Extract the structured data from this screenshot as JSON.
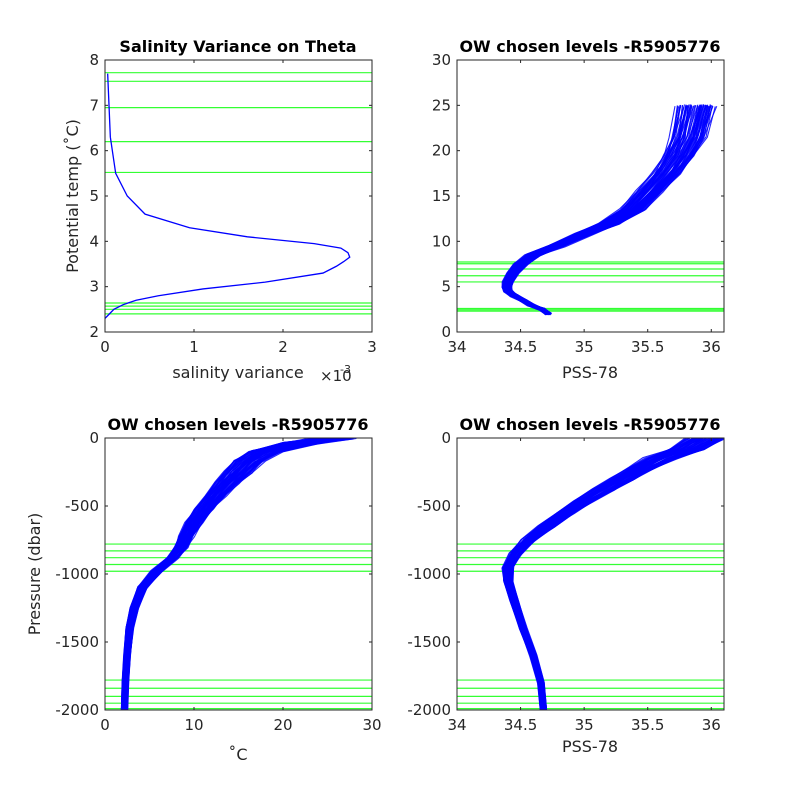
{
  "chart_data": [
    {
      "type": "line",
      "title": "Salinity Variance on Theta",
      "xlabel": "salinity variance",
      "x_exponent_label": "×10",
      "x_exponent": "-3",
      "ylabel": "Potential temp (˚C)",
      "xlim": [
        0,
        3
      ],
      "ylim": [
        2,
        8
      ],
      "xticks": [
        "0",
        "1",
        "2",
        "3"
      ],
      "yticks": [
        "2",
        "3",
        "4",
        "5",
        "6",
        "7",
        "8"
      ],
      "x_scale": 0.001,
      "series": [
        {
          "color": "#0000ff",
          "x": [
            0.0,
            0.05,
            0.1,
            0.2,
            0.35,
            0.6,
            1.1,
            1.8,
            2.45,
            2.6,
            2.68,
            2.75,
            2.73,
            2.65,
            2.35,
            1.6,
            0.95,
            0.45,
            0.25,
            0.12,
            0.06,
            0.03
          ],
          "y": [
            2.3,
            2.4,
            2.5,
            2.6,
            2.7,
            2.8,
            2.95,
            3.1,
            3.3,
            3.45,
            3.55,
            3.65,
            3.75,
            3.85,
            3.95,
            4.1,
            4.3,
            4.6,
            5.0,
            5.5,
            6.3,
            7.7
          ]
        }
      ],
      "levels": [
        2.4,
        2.5,
        2.57,
        2.64,
        5.52,
        6.2,
        6.95,
        7.53,
        7.72
      ],
      "level_color": "#33ff33"
    },
    {
      "type": "line",
      "title": "OW chosen levels -R5905776",
      "xlabel": "PSS-78",
      "ylabel": "",
      "xlim": [
        34,
        36.1
      ],
      "ylim": [
        0,
        30
      ],
      "xticks": [
        "34",
        "34.5",
        "35",
        "35.5",
        "36"
      ],
      "yticks": [
        "0",
        "5",
        "10",
        "15",
        "20",
        "25",
        "30"
      ],
      "series_color": "#0000ff",
      "mean_profile": {
        "x": [
          34.72,
          34.67,
          34.58,
          34.52,
          34.45,
          34.4,
          34.39,
          34.4,
          34.44,
          34.5,
          34.6,
          34.78,
          35.0,
          35.2,
          35.38,
          35.52,
          35.65,
          35.75,
          35.82,
          35.88
        ],
        "y": [
          2.0,
          2.5,
          3.0,
          3.5,
          4.0,
          4.5,
          5.0,
          5.5,
          6.5,
          7.5,
          8.5,
          9.5,
          10.8,
          12.0,
          13.5,
          15.5,
          17.5,
          19.5,
          21.5,
          25.0
        ]
      },
      "levels": [
        2.3,
        2.45,
        2.6,
        5.52,
        6.2,
        6.95,
        7.53,
        7.72
      ],
      "level_color": "#33ff33"
    },
    {
      "type": "line",
      "title": "OW chosen levels -R5905776",
      "xlabel": "˚C",
      "ylabel": "Pressure (dbar)",
      "xlim": [
        0,
        30
      ],
      "ylim": [
        -2000,
        0
      ],
      "xticks": [
        "0",
        "10",
        "20",
        "30"
      ],
      "yticks": [
        "-2000",
        "-1500",
        "-1000",
        "-500",
        "0"
      ],
      "series_color": "#0000ff",
      "mean_profile": {
        "x": [
          2.2,
          2.3,
          2.5,
          2.8,
          3.3,
          4.2,
          5.8,
          7.6,
          8.6,
          9.2,
          10.0,
          11.2,
          12.5,
          13.8,
          15.0,
          16.2,
          18.0,
          22.0,
          26.0
        ],
        "y": [
          -2000,
          -1800,
          -1600,
          -1400,
          -1250,
          -1100,
          -980,
          -880,
          -800,
          -720,
          -620,
          -520,
          -420,
          -330,
          -250,
          -170,
          -100,
          -40,
          0
        ]
      },
      "levels": [
        -780,
        -830,
        -880,
        -930,
        -980,
        -1780,
        -1840,
        -1900,
        -1950,
        -1990
      ],
      "level_color": "#33ff33"
    },
    {
      "type": "line",
      "title": "OW chosen levels -R5905776",
      "xlabel": "PSS-78",
      "ylabel": "",
      "xlim": [
        34,
        36.1
      ],
      "ylim": [
        -2000,
        0
      ],
      "xticks": [
        "34",
        "34.5",
        "35",
        "35.5",
        "36"
      ],
      "yticks": [
        "-2000",
        "-1500",
        "-1000",
        "-500",
        "0"
      ],
      "series_color": "#0000ff",
      "mean_profile": {
        "x": [
          34.68,
          34.66,
          34.6,
          34.52,
          34.45,
          34.4,
          34.4,
          34.46,
          34.56,
          34.7,
          34.85,
          35.0,
          35.15,
          35.3,
          35.45,
          35.6,
          35.8,
          35.95
        ],
        "y": [
          -2000,
          -1800,
          -1600,
          -1400,
          -1200,
          -1050,
          -950,
          -850,
          -750,
          -650,
          -550,
          -460,
          -380,
          -300,
          -220,
          -150,
          -80,
          0
        ]
      },
      "levels": [
        -780,
        -830,
        -880,
        -930,
        -980,
        -1780,
        -1840,
        -1900,
        -1950,
        -1990
      ],
      "level_color": "#33ff33"
    }
  ]
}
